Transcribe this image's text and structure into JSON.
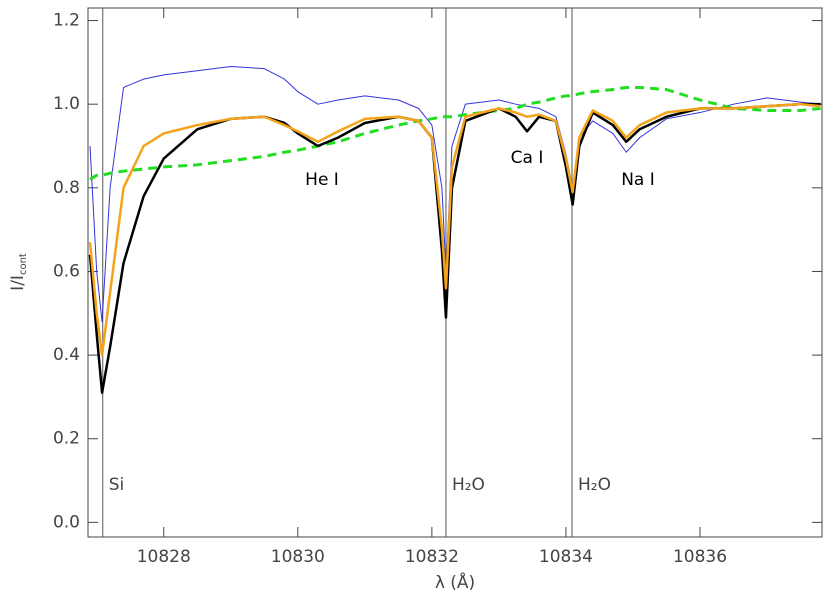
{
  "chart_data": {
    "type": "line",
    "xlabel": "λ (Å)",
    "ylabel": {
      "main": "I/I",
      "sub": "cont"
    },
    "xlim": [
      10826.87,
      10837.82
    ],
    "ylim": [
      -0.035,
      1.23
    ],
    "xticks": [
      10828,
      10830,
      10832,
      10834,
      10836
    ],
    "yticks": [
      {
        "value": 0,
        "label": "0.0"
      },
      0.2,
      0.4,
      0.6,
      0.8,
      {
        "value": 1,
        "label": "1.0"
      },
      1.2
    ],
    "x": [
      10826.9,
      10827.0,
      10827.08,
      10827.2,
      10827.4,
      10827.7,
      10828.0,
      10828.5,
      10829.0,
      10829.5,
      10829.8,
      10830.0,
      10830.3,
      10830.6,
      10831.0,
      10831.5,
      10831.8,
      10832.0,
      10832.15,
      10832.21,
      10832.3,
      10832.5,
      10833.0,
      10833.25,
      10833.42,
      10833.6,
      10833.85,
      10834.0,
      10834.1,
      10834.2,
      10834.4,
      10834.7,
      10834.9,
      10835.1,
      10835.5,
      10836.0,
      10836.5,
      10837.0,
      10837.5,
      10837.8
    ],
    "series": [
      {
        "color": "#3333dd",
        "width": 1,
        "values": [
          0.9,
          0.6,
          0.48,
          0.8,
          1.04,
          1.06,
          1.07,
          1.08,
          1.09,
          1.085,
          1.06,
          1.03,
          1.0,
          1.01,
          1.02,
          1.01,
          0.99,
          0.95,
          0.8,
          0.6,
          0.9,
          1.0,
          1.01,
          1.0,
          0.995,
          0.99,
          0.97,
          0.88,
          0.8,
          0.92,
          0.96,
          0.93,
          0.885,
          0.92,
          0.965,
          0.98,
          1.0,
          1.015,
          1.005,
          1.0
        ]
      },
      {
        "color": "#22dd22",
        "width": 3,
        "dashed": true,
        "values": [
          0.82,
          0.83,
          0.83,
          0.835,
          0.84,
          0.845,
          0.85,
          0.855,
          0.865,
          0.875,
          0.885,
          0.89,
          0.9,
          0.91,
          0.93,
          0.95,
          0.96,
          0.965,
          0.97,
          0.97,
          0.97,
          0.975,
          0.985,
          0.99,
          1.0,
          1.005,
          1.015,
          1.02,
          1.02,
          1.025,
          1.03,
          1.035,
          1.04,
          1.04,
          1.035,
          1.01,
          0.99,
          0.985,
          0.985,
          0.99
        ]
      },
      {
        "color": "#000000",
        "width": 2.5,
        "values": [
          0.64,
          0.45,
          0.31,
          0.42,
          0.62,
          0.78,
          0.87,
          0.94,
          0.965,
          0.97,
          0.955,
          0.93,
          0.9,
          0.92,
          0.955,
          0.97,
          0.96,
          0.92,
          0.65,
          0.49,
          0.8,
          0.96,
          0.99,
          0.97,
          0.935,
          0.97,
          0.96,
          0.85,
          0.76,
          0.9,
          0.98,
          0.95,
          0.91,
          0.94,
          0.97,
          0.99,
          0.99,
          0.995,
          1.0,
          1.0
        ]
      },
      {
        "color": "#f5a31a",
        "width": 2.5,
        "values": [
          0.67,
          0.5,
          0.4,
          0.55,
          0.8,
          0.9,
          0.93,
          0.95,
          0.965,
          0.97,
          0.95,
          0.935,
          0.91,
          0.935,
          0.965,
          0.97,
          0.96,
          0.92,
          0.7,
          0.56,
          0.85,
          0.97,
          0.99,
          0.98,
          0.97,
          0.975,
          0.96,
          0.87,
          0.79,
          0.92,
          0.985,
          0.96,
          0.92,
          0.95,
          0.98,
          0.99,
          0.99,
          0.995,
          1.0,
          0.995
        ]
      }
    ],
    "reference_lines": [
      {
        "x": 10827.09,
        "label": "Si"
      },
      {
        "x": 10832.21,
        "label": "H₂O"
      },
      {
        "x": 10834.09,
        "label": "H₂O"
      }
    ],
    "annotations": [
      "He I",
      "Ca I",
      "Na I"
    ]
  }
}
